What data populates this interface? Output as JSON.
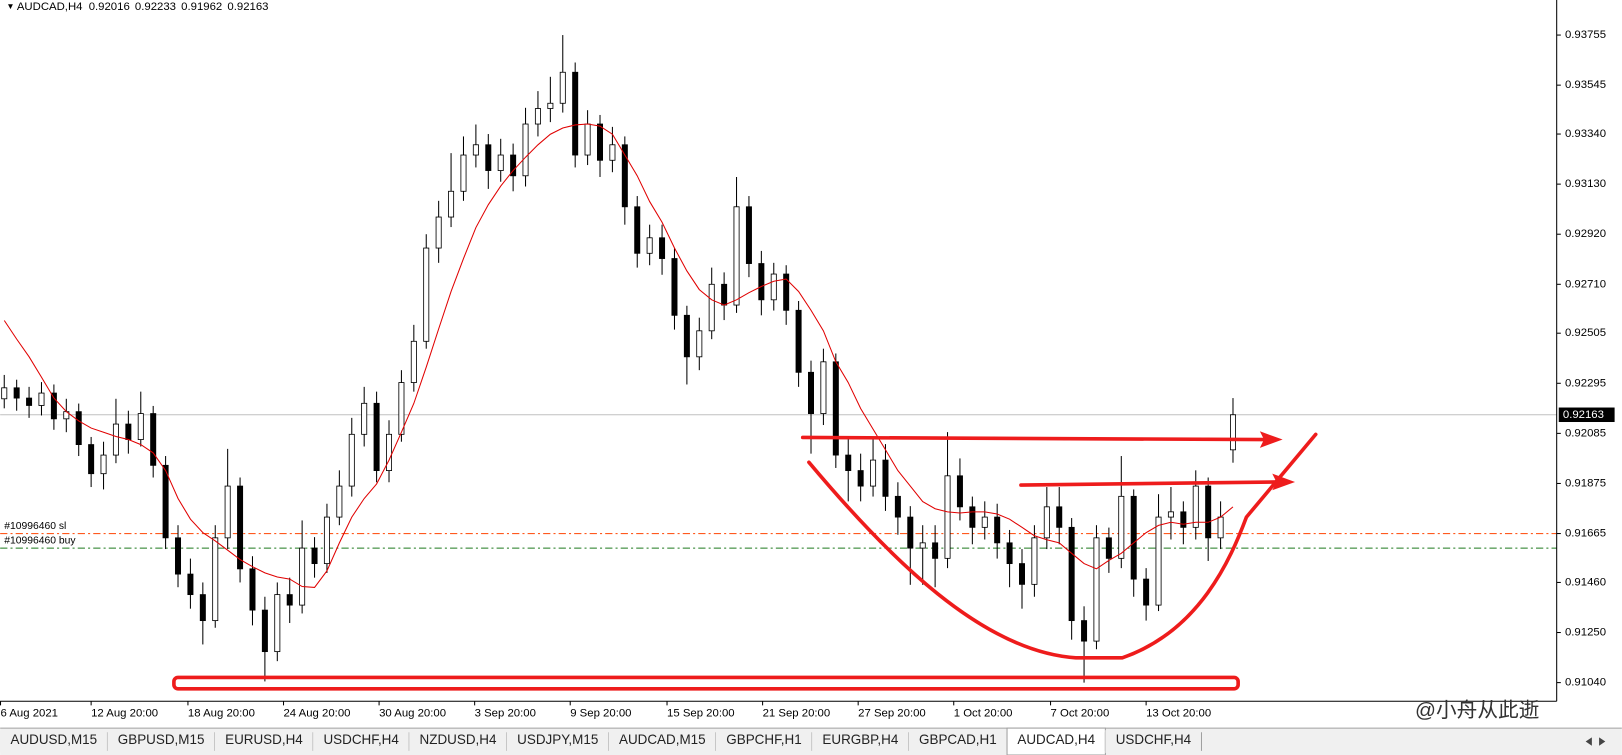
{
  "chart_data": {
    "type": "candlestick",
    "title": "AUDCAD,H4",
    "open": [
      0.9223,
      0.92276,
      0.92233,
      0.92202,
      0.92254,
      0.92146,
      0.92176,
      0.92038,
      0.91916,
      0.91994,
      0.92124,
      0.92059,
      0.92168,
      0.91951,
      0.91647,
      0.91495,
      0.91409,
      0.913,
      0.91647,
      0.91864,
      0.91517,
      0.91344,
      0.9117,
      0.91409,
      0.91365,
      0.91604,
      0.91539,
      0.91734,
      0.91864,
      0.92081,
      0.92211,
      0.91929,
      0.92081,
      0.92298,
      0.92471,
      0.92862,
      0.92992,
      0.931,
      0.93252,
      0.93295,
      0.93187,
      0.93252,
      0.93165,
      0.93382,
      0.93447,
      0.93469,
      0.93599,
      0.93252,
      0.93382,
      0.9323,
      0.93295,
      0.93035,
      0.9284,
      0.92905,
      0.92818,
      0.9258,
      0.92406,
      0.92515,
      0.9271,
      0.92623,
      0.93035,
      0.92797,
      0.92645,
      0.92753,
      0.92601,
      0.92341,
      0.92168,
      0.92385,
      0.91994,
      0.91929,
      0.91864,
      0.91973,
      0.91821,
      0.91734,
      0.91604,
      0.91626,
      0.91561,
      0.91907,
      0.91777,
      0.91691,
      0.91734,
      0.91626,
      0.91539,
      0.91452,
      0.91647,
      0.91777,
      0.91691,
      0.913,
      0.91214,
      0.91647,
      0.91561,
      0.91821,
      0.91474,
      0.91365,
      0.91734,
      0.91756,
      0.91691,
      0.91864,
      0.91647,
      0.92016
    ],
    "high": [
      0.9233,
      0.9231,
      0.9228,
      0.923,
      0.9229,
      0.9223,
      0.9221,
      0.9207,
      0.9205,
      0.9223,
      0.9218,
      0.9226,
      0.922,
      0.9199,
      0.917,
      0.9156,
      0.9146,
      0.917,
      0.9202,
      0.919,
      0.9157,
      0.914,
      0.9146,
      0.9148,
      0.9172,
      0.9165,
      0.9179,
      0.9193,
      0.9215,
      0.9228,
      0.9226,
      0.9214,
      0.9235,
      0.9254,
      0.9292,
      0.9306,
      0.9326,
      0.9333,
      0.9338,
      0.9334,
      0.9332,
      0.933,
      0.9345,
      0.9352,
      0.9358,
      0.93755,
      0.9364,
      0.9344,
      0.9342,
      0.9337,
      0.9333,
      0.9308,
      0.9296,
      0.9296,
      0.9286,
      0.9262,
      0.9257,
      0.9278,
      0.9276,
      0.9316,
      0.9308,
      0.9285,
      0.928,
      0.9279,
      0.9264,
      0.9239,
      0.9244,
      0.9242,
      0.9207,
      0.92,
      0.9206,
      0.9204,
      0.9188,
      0.9178,
      0.917,
      0.917,
      0.9209,
      0.9198,
      0.9182,
      0.918,
      0.9179,
      0.9168,
      0.916,
      0.917,
      0.9186,
      0.9186,
      0.9173,
      0.9136,
      0.917,
      0.9169,
      0.9199,
      0.9185,
      0.9152,
      0.9183,
      0.9186,
      0.918,
      0.9193,
      0.919,
      0.918,
      0.92233
    ],
    "low": [
      0.9219,
      0.9218,
      0.9215,
      0.9216,
      0.921,
      0.9209,
      0.9199,
      0.9186,
      0.9185,
      0.9196,
      0.92,
      0.9203,
      0.919,
      0.916,
      0.9144,
      0.9135,
      0.912,
      0.9127,
      0.916,
      0.9146,
      0.9128,
      0.91045,
      0.9113,
      0.9129,
      0.9133,
      0.9148,
      0.915,
      0.917,
      0.9182,
      0.9203,
      0.9188,
      0.9188,
      0.9205,
      0.9226,
      0.9244,
      0.928,
      0.9295,
      0.9306,
      0.932,
      0.9311,
      0.9314,
      0.931,
      0.9312,
      0.9333,
      0.9339,
      0.9343,
      0.932,
      0.9321,
      0.9316,
      0.9318,
      0.9296,
      0.9278,
      0.9279,
      0.9275,
      0.9252,
      0.9229,
      0.9235,
      0.9248,
      0.9256,
      0.9259,
      0.9274,
      0.9258,
      0.926,
      0.9254,
      0.9228,
      0.92,
      0.9212,
      0.9194,
      0.918,
      0.918,
      0.9182,
      0.9176,
      0.9166,
      0.9145,
      0.9145,
      0.9144,
      0.9152,
      0.9172,
      0.9162,
      0.9164,
      0.9156,
      0.9144,
      0.9135,
      0.914,
      0.916,
      0.9162,
      0.9122,
      0.9104,
      0.9118,
      0.915,
      0.9152,
      0.914,
      0.913,
      0.9134,
      0.9164,
      0.9162,
      0.9164,
      0.9155,
      0.916,
      0.91962
    ],
    "close": [
      0.92276,
      0.92233,
      0.92202,
      0.92254,
      0.92146,
      0.92176,
      0.92038,
      0.91916,
      0.91994,
      0.92124,
      0.92059,
      0.92168,
      0.91951,
      0.91647,
      0.91495,
      0.91409,
      0.913,
      0.91647,
      0.91864,
      0.91517,
      0.91344,
      0.9117,
      0.91409,
      0.91365,
      0.91604,
      0.91539,
      0.91734,
      0.91864,
      0.92081,
      0.92211,
      0.91929,
      0.92081,
      0.92298,
      0.92471,
      0.92862,
      0.92992,
      0.931,
      0.93252,
      0.93295,
      0.93187,
      0.93252,
      0.93165,
      0.93382,
      0.93447,
      0.93469,
      0.93599,
      0.93252,
      0.93382,
      0.9323,
      0.93295,
      0.93035,
      0.9284,
      0.92905,
      0.92818,
      0.9258,
      0.92406,
      0.92515,
      0.9271,
      0.92623,
      0.93035,
      0.92797,
      0.92645,
      0.92753,
      0.92601,
      0.92341,
      0.92168,
      0.92385,
      0.91994,
      0.91929,
      0.91864,
      0.91973,
      0.91821,
      0.91734,
      0.91604,
      0.91626,
      0.91561,
      0.91907,
      0.91777,
      0.91691,
      0.91734,
      0.91626,
      0.91539,
      0.91452,
      0.91647,
      0.91777,
      0.91691,
      0.913,
      0.91214,
      0.91647,
      0.91561,
      0.91821,
      0.91474,
      0.91365,
      0.91734,
      0.91756,
      0.91691,
      0.91864,
      0.91647,
      0.91734,
      0.92163
    ],
    "ma_values": [
      0.92558,
      0.9248,
      0.92406,
      0.9232,
      0.92233,
      0.92176,
      0.92137,
      0.92107,
      0.9209,
      0.92072,
      0.92059,
      0.92038,
      0.92003,
      0.91929,
      0.91812,
      0.91725,
      0.91669,
      0.91634,
      0.91595,
      0.91556,
      0.91526,
      0.915,
      0.91483,
      0.91474,
      0.91443,
      0.91439,
      0.91509,
      0.91626,
      0.91734,
      0.91812,
      0.91873,
      0.91973,
      0.9209,
      0.92211,
      0.92363,
      0.92523,
      0.9268,
      0.92818,
      0.92948,
      0.93044,
      0.93122,
      0.93187,
      0.93243,
      0.93295,
      0.93339,
      0.93365,
      0.93378,
      0.93382,
      0.93373,
      0.93339,
      0.93252,
      0.93165,
      0.93057,
      0.9297,
      0.92862,
      0.92766,
      0.92688,
      0.92645,
      0.92623,
      0.92645,
      0.92675,
      0.92701,
      0.92723,
      0.92732,
      0.9268,
      0.92601,
      0.92515,
      0.92385,
      0.92298,
      0.92189,
      0.92103,
      0.92016,
      0.91929,
      0.91864,
      0.91799,
      0.91769,
      0.91756,
      0.91751,
      0.91756,
      0.91756,
      0.91747,
      0.91725,
      0.91691,
      0.91656,
      0.91639,
      0.91626,
      0.91582,
      0.91539,
      0.91517,
      0.91552,
      0.91582,
      0.91626,
      0.91669,
      0.91699,
      0.91712,
      0.91704,
      0.91712,
      0.91712,
      0.91734,
      0.91777
    ],
    "ma_color": "#e00000",
    "up_color": "#ffffff",
    "down_color": "#000000",
    "wick_color": "#000000",
    "ylim": [
      0.90962,
      0.93902
    ],
    "yticks": [
      0.93755,
      0.93545,
      {
        "value": 0.9334,
        "label": "0.93340"
      },
      {
        "value": 0.9313,
        "label": "0.93130"
      },
      {
        "value": 0.9292,
        "label": "0.92920"
      },
      {
        "value": 0.9271,
        "label": "0.92710"
      },
      0.92505,
      0.92295,
      0.92085,
      0.91875,
      0.91665,
      {
        "value": 0.9146,
        "label": "0.91460"
      },
      {
        "value": 0.9125,
        "label": "0.91250"
      },
      {
        "value": 0.9104,
        "label": "0.91040"
      }
    ],
    "xlim": [
      -0.33,
      125.08
    ],
    "xticks": [
      {
        "value": -0.3,
        "label": "6 Aug 2021"
      },
      {
        "value": 7,
        "label": "12 Aug 20:00"
      },
      {
        "value": 14.8,
        "label": "18 Aug 20:00"
      },
      {
        "value": 22.5,
        "label": "24 Aug 20:00"
      },
      {
        "value": 30.2,
        "label": "30 Aug 20:00"
      },
      {
        "value": 37.9,
        "label": "3 Sep 20:00"
      },
      {
        "value": 45.6,
        "label": "9 Sep 20:00"
      },
      {
        "value": 53.4,
        "label": "15 Sep 20:00"
      },
      {
        "value": 61.1,
        "label": "21 Sep 20:00"
      },
      {
        "value": 68.8,
        "label": "27 Sep 20:00"
      },
      {
        "value": 76.5,
        "label": "1 Oct 20:00"
      },
      {
        "value": 84.3,
        "label": "7 Oct 20:00"
      },
      {
        "value": 92,
        "label": "13 Oct 20:00"
      }
    ],
    "order_lines": [
      {
        "label": "#10996460 sl",
        "value": 0.91665,
        "color": "#ff5a1f"
      },
      {
        "label": "#10996460 buy",
        "value": 0.91604,
        "color": "#1f7a1f"
      }
    ],
    "bid_line_color": "#c0c0c0"
  },
  "tabs": {
    "items": [
      "AUDUSD,M15",
      "GBPUSD,M15",
      "EURUSD,H4",
      "USDCHF,H4",
      "NZDUSD,H4",
      "USDJPY,M15",
      "AUDCAD,M15",
      "GBPCHF,H1",
      "EURGBP,H4",
      "GBPCAD,H1",
      "AUDCAD,H4",
      "USDCHF,H4"
    ],
    "active": 10
  },
  "watermark": "@小舟从此逝"
}
